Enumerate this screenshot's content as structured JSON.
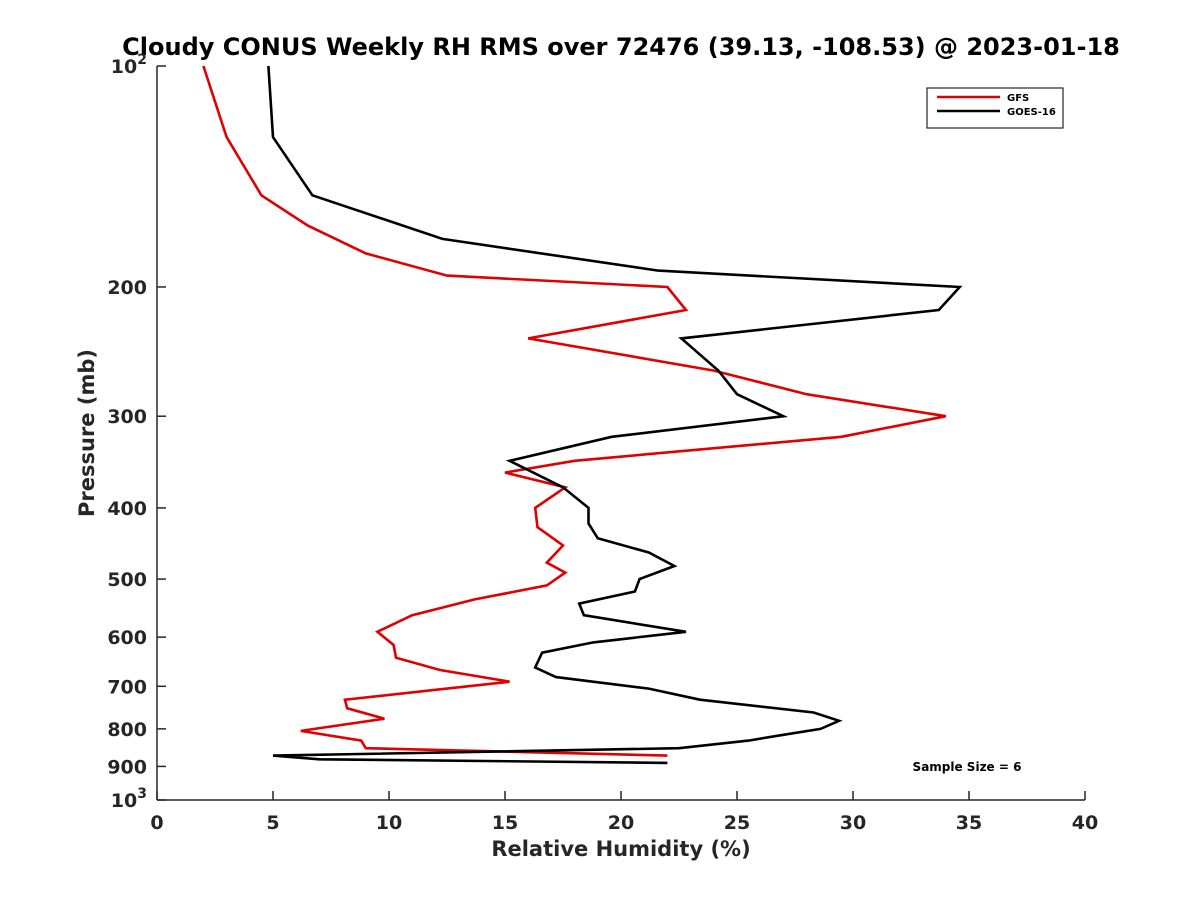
{
  "chart_data": {
    "type": "line",
    "title": "Cloudy CONUS Weekly RH RMS over 72476 (39.13, -108.53) @ 2023-01-18",
    "xlabel": "Relative Humidity (%)",
    "ylabel": "Pressure (mb)",
    "xlim": [
      0,
      40
    ],
    "ylim": [
      100,
      1000
    ],
    "y_scale": "log",
    "y_reversed": true,
    "grid": false,
    "legend_position": "top-right",
    "x_ticks": [
      0,
      5,
      10,
      15,
      20,
      25,
      30,
      35,
      40
    ],
    "x_tick_labels": [
      "0",
      "5",
      "10",
      "15",
      "20",
      "25",
      "30",
      "35",
      "40"
    ],
    "y_ticks": [
      100,
      200,
      300,
      400,
      500,
      600,
      700,
      800,
      900,
      1000
    ],
    "y_tick_labels": [
      {
        "base": "10",
        "exp": "2"
      },
      {
        "text": "200"
      },
      {
        "text": "300"
      },
      {
        "text": "400"
      },
      {
        "text": "500"
      },
      {
        "text": "600"
      },
      {
        "text": "700"
      },
      {
        "text": "800"
      },
      {
        "text": "900"
      },
      {
        "base": "10",
        "exp": "3"
      }
    ],
    "annotations": [
      {
        "text": "Sample Size = 6"
      }
    ],
    "series": [
      {
        "name": "GFS",
        "color": "#e00000",
        "points": [
          [
            2.0,
            100
          ],
          [
            3.0,
            125
          ],
          [
            4.5,
            150
          ],
          [
            6.5,
            165
          ],
          [
            9.0,
            180
          ],
          [
            12.5,
            193
          ],
          [
            22.0,
            200
          ],
          [
            22.8,
            215
          ],
          [
            16.0,
            235
          ],
          [
            24.0,
            260
          ],
          [
            28.0,
            280
          ],
          [
            34.0,
            300
          ],
          [
            29.5,
            320
          ],
          [
            18.0,
            345
          ],
          [
            15.0,
            358
          ],
          [
            17.6,
            375
          ],
          [
            16.3,
            400
          ],
          [
            16.4,
            425
          ],
          [
            17.5,
            450
          ],
          [
            16.8,
            475
          ],
          [
            17.6,
            490
          ],
          [
            16.8,
            510
          ],
          [
            13.7,
            533
          ],
          [
            11.0,
            560
          ],
          [
            9.5,
            590
          ],
          [
            10.2,
            615
          ],
          [
            10.3,
            640
          ],
          [
            12.2,
            665
          ],
          [
            15.2,
            690
          ],
          [
            12.5,
            705
          ],
          [
            8.1,
            730
          ],
          [
            8.2,
            750
          ],
          [
            9.8,
            775
          ],
          [
            6.2,
            805
          ],
          [
            8.8,
            830
          ],
          [
            9.0,
            850
          ],
          [
            22.0,
            870
          ]
        ]
      },
      {
        "name": "GOES-16",
        "color": "#000000",
        "points": [
          [
            4.8,
            100
          ],
          [
            5.0,
            125
          ],
          [
            6.7,
            150
          ],
          [
            12.3,
            172
          ],
          [
            21.6,
            190
          ],
          [
            34.6,
            200
          ],
          [
            33.7,
            215
          ],
          [
            22.6,
            235
          ],
          [
            24.2,
            260
          ],
          [
            25.0,
            280
          ],
          [
            27.0,
            300
          ],
          [
            19.6,
            320
          ],
          [
            15.2,
            345
          ],
          [
            17.5,
            375
          ],
          [
            18.6,
            400
          ],
          [
            18.6,
            420
          ],
          [
            19.0,
            440
          ],
          [
            21.2,
            460
          ],
          [
            22.3,
            480
          ],
          [
            20.8,
            500
          ],
          [
            20.6,
            520
          ],
          [
            18.2,
            540
          ],
          [
            18.4,
            560
          ],
          [
            22.8,
            590
          ],
          [
            18.8,
            610
          ],
          [
            16.6,
            630
          ],
          [
            16.3,
            660
          ],
          [
            17.2,
            680
          ],
          [
            21.2,
            705
          ],
          [
            23.4,
            730
          ],
          [
            28.3,
            760
          ],
          [
            29.4,
            780
          ],
          [
            28.6,
            800
          ],
          [
            27.0,
            815
          ],
          [
            25.5,
            830
          ],
          [
            22.5,
            850
          ],
          [
            5.0,
            870
          ],
          [
            7.0,
            880
          ],
          [
            22.0,
            890
          ]
        ]
      }
    ]
  }
}
